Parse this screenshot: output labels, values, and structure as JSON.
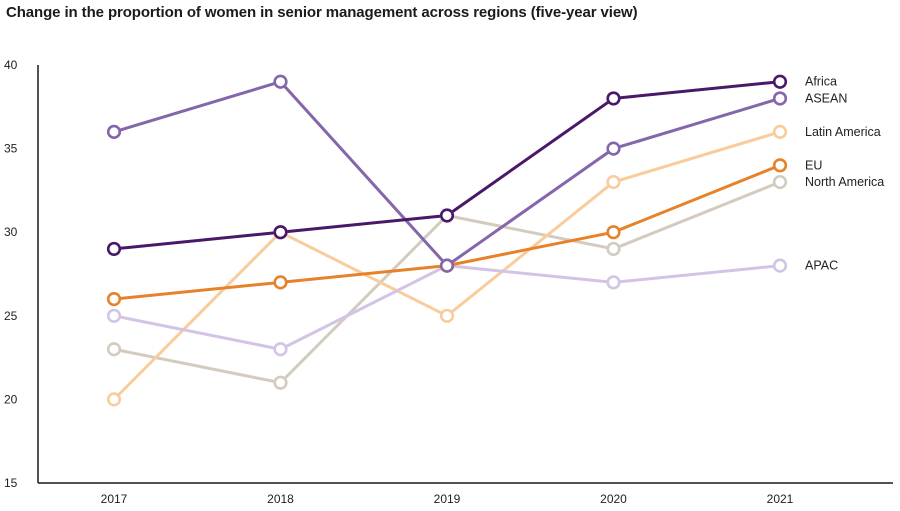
{
  "chart_data": {
    "type": "line",
    "title": "Change in the proportion of women in senior management across regions (five-year view)",
    "xlabel": "",
    "ylabel": "",
    "categories": [
      "2017",
      "2018",
      "2019",
      "2020",
      "2021"
    ],
    "yticks": [
      15,
      20,
      25,
      30,
      35,
      40
    ],
    "ylim": [
      15,
      40
    ],
    "grid": false,
    "series": [
      {
        "name": "North America",
        "color": "#d4cbbf",
        "values": [
          23,
          21,
          31,
          29,
          33
        ]
      },
      {
        "name": "Latin America",
        "color": "#f9cc9c",
        "values": [
          20,
          30,
          25,
          33,
          36
        ]
      },
      {
        "name": "APAC",
        "color": "#d3c4e6",
        "values": [
          25,
          23,
          28,
          27,
          28
        ]
      },
      {
        "name": "EU",
        "color": "#e8822a",
        "values": [
          26,
          27,
          28,
          30,
          34
        ]
      },
      {
        "name": "ASEAN",
        "color": "#8466ab",
        "values": [
          36,
          39,
          28,
          35,
          38
        ]
      },
      {
        "name": "Africa",
        "color": "#4a1869",
        "values": [
          29,
          30,
          31,
          38,
          39
        ]
      }
    ]
  }
}
